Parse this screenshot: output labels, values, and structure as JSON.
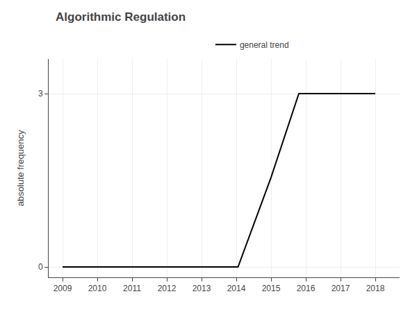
{
  "chart_data": {
    "type": "line",
    "title": "Algorithmic Regulation",
    "ylabel": "absolute frequency",
    "x": [
      2009,
      2010,
      2011,
      2012,
      2013,
      2014,
      2014.05,
      2015,
      2015.8,
      2016,
      2017,
      2018
    ],
    "series": [
      {
        "name": "general trend",
        "color": "#000000",
        "values": [
          0,
          0,
          0,
          0,
          0,
          0,
          0,
          1.55,
          3,
          3,
          3,
          3
        ]
      }
    ],
    "xlim": [
      2008.6,
      2018.7
    ],
    "ylim": [
      -0.18,
      3.6
    ],
    "xticks": [
      2009,
      2010,
      2011,
      2012,
      2013,
      2014,
      2015,
      2016,
      2017,
      2018
    ],
    "yticks": [
      0,
      3
    ],
    "grid": true,
    "legend": "top"
  }
}
